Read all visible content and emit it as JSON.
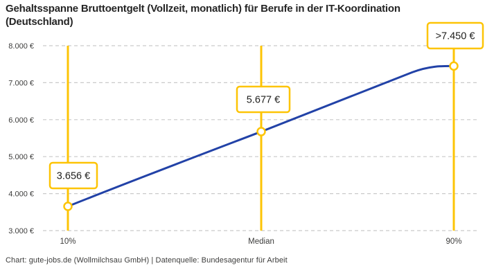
{
  "header": {
    "title": "Gehaltsspanne Bruttoentgelt (Vollzeit, monatlich) für Berufe in der IT-Koordination (Deutschland)"
  },
  "footer": {
    "credit": "Chart: gute-jobs.de (Wollmilchsau GmbH) | Datenquelle: Bundesagentur für Arbeit"
  },
  "chart_data": {
    "type": "line",
    "title": "Gehaltsspanne Bruttoentgelt (Vollzeit, monatlich) für Berufe in der IT-Koordination (Deutschland)",
    "categories": [
      "10%",
      "Median",
      "90%"
    ],
    "values": [
      3656,
      5677,
      7450
    ],
    "point_labels": [
      "3.656 €",
      "5.677 €",
      ">7.450 €"
    ],
    "yticks": [
      3000,
      4000,
      5000,
      6000,
      7000,
      8000
    ],
    "ytick_labels": [
      "3.000 €",
      "4.000 €",
      "5.000 €",
      "6.000 €",
      "7.000 €",
      "8.000 €"
    ],
    "ylim": [
      3000,
      8000
    ],
    "xlabel": "",
    "ylabel": "",
    "grid": "horizontal-dashed",
    "legend": "none",
    "colors": {
      "line": "#2242a7",
      "percentile_line": "#fdc405",
      "marker_fill": "#ffffff",
      "marker_stroke": "#fdc405",
      "label_box_border": "#fdc405",
      "label_box_fill": "#ffffff",
      "grid": "#c9c9c9",
      "tick_text": "#3c3c3b",
      "label_text": "#1d1d1b"
    }
  }
}
